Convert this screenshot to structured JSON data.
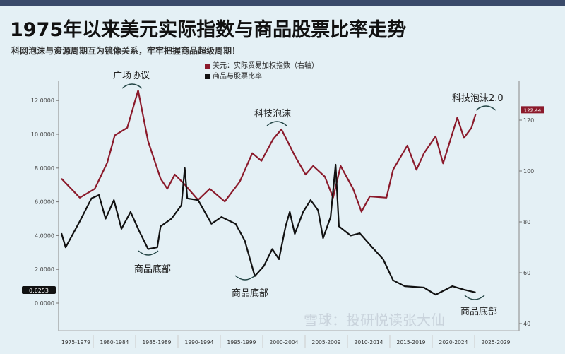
{
  "title": "1975年以来美元实际指数与商品股票比率走势",
  "subtitle": "科网泡沫与资源周期互为镜像关系，牢牢把握商品超级周期！",
  "watermark": "雪球：投研悦读张大仙",
  "colors": {
    "background": "#e4f0f5",
    "dollar": "#8b1a2b",
    "ratio": "#111111"
  },
  "chart_data": {
    "type": "line",
    "title": "1975年以来美元实际指数与商品股票比率走势",
    "legend_position": "top-center",
    "grid": false,
    "x_tick_labels": [
      "1975-1979",
      "1980-1984",
      "1985-1989",
      "1990-1994",
      "1995-1999",
      "2000-2004",
      "2005-2009",
      "2010-2014",
      "2015-2019",
      "2020-2024",
      "2025-2029"
    ],
    "xlim": [
      1975,
      2030
    ],
    "left_axis": {
      "ylim": [
        0,
        12.5
      ],
      "ticks": [
        "0.0000",
        "2.0000",
        "4.0000",
        "6.0000",
        "8.0000",
        "10.0000",
        "12.0000"
      ],
      "last_value_label": "0.6253"
    },
    "right_axis": {
      "ylim": [
        40,
        130
      ],
      "ticks": [
        "40",
        "60",
        "80",
        "100",
        "120"
      ],
      "last_value_label": "122.44"
    },
    "series": [
      {
        "name": "美元：实际贸易加权指数（右轴）",
        "axis": "right",
        "color": "#8b1a2b",
        "x": [
          1975,
          1977.2,
          1979,
          1980.5,
          1981.4,
          1982.9,
          1984.2,
          1985.4,
          1986.9,
          1987.7,
          1988.6,
          1989.7,
          1991.4,
          1992.8,
          1994.6,
          1996.4,
          1997.9,
          1999,
          2000.4,
          2001.4,
          2003,
          2004.3,
          2005.2,
          2006.6,
          2007.6,
          2008.5,
          2010,
          2011,
          2012,
          2014,
          2014.8,
          2016.5,
          2017.6,
          2018.5,
          2019.9,
          2020.8,
          2022.5,
          2023.3,
          2024.2,
          2024.7
        ],
        "y": [
          97,
          89.5,
          93,
          103.3,
          114,
          117,
          131.7,
          111.7,
          97,
          93,
          98.6,
          95,
          88.6,
          93,
          88,
          95.8,
          107,
          104,
          112.5,
          116.4,
          106,
          98.6,
          102,
          97.8,
          89.5,
          102,
          93,
          84,
          90,
          89.5,
          100.5,
          110,
          100.5,
          107,
          113.6,
          103,
          121,
          113,
          117,
          122.4
        ]
      },
      {
        "name": "商品与股票比率",
        "axis": "left",
        "color": "#111111",
        "x": [
          1975,
          1975.5,
          1977.2,
          1978.6,
          1979.5,
          1980.3,
          1981.3,
          1982.2,
          1983.3,
          1984.3,
          1985.4,
          1986.5,
          1986.9,
          1988.2,
          1989.4,
          1989.8,
          1990.1,
          1991.4,
          1993,
          1994.2,
          1995.9,
          1997,
          1998.2,
          1999.3,
          2000.3,
          2001.1,
          2001.9,
          2002.4,
          2003,
          2004,
          2004.9,
          2005.8,
          2006.4,
          2007.3,
          2007.9,
          2008.3,
          2009.7,
          2010.8,
          2012.3,
          2013.6,
          2014.8,
          2016.2,
          2018.5,
          2019.9,
          2021.9,
          2023.3,
          2024.7
        ],
        "y": [
          4.14,
          3.3,
          4.85,
          6.2,
          6.4,
          5.0,
          6.1,
          4.4,
          5.4,
          4.3,
          3.2,
          3.3,
          4.55,
          5.0,
          5.8,
          8.0,
          6.2,
          6.1,
          4.7,
          5.1,
          4.7,
          3.7,
          1.6,
          2.2,
          3.2,
          2.6,
          4.55,
          5.4,
          4.1,
          5.4,
          6.1,
          5.5,
          3.85,
          5.1,
          8.2,
          4.55,
          4.0,
          4.14,
          3.3,
          2.6,
          1.35,
          1.0,
          0.92,
          0.5,
          1.0,
          0.8,
          0.63
        ]
      }
    ],
    "annotations": [
      "广场协议",
      "科技泡沫",
      "科技泡沫2.0",
      "商品底部",
      "商品底部",
      "商品底部"
    ]
  }
}
